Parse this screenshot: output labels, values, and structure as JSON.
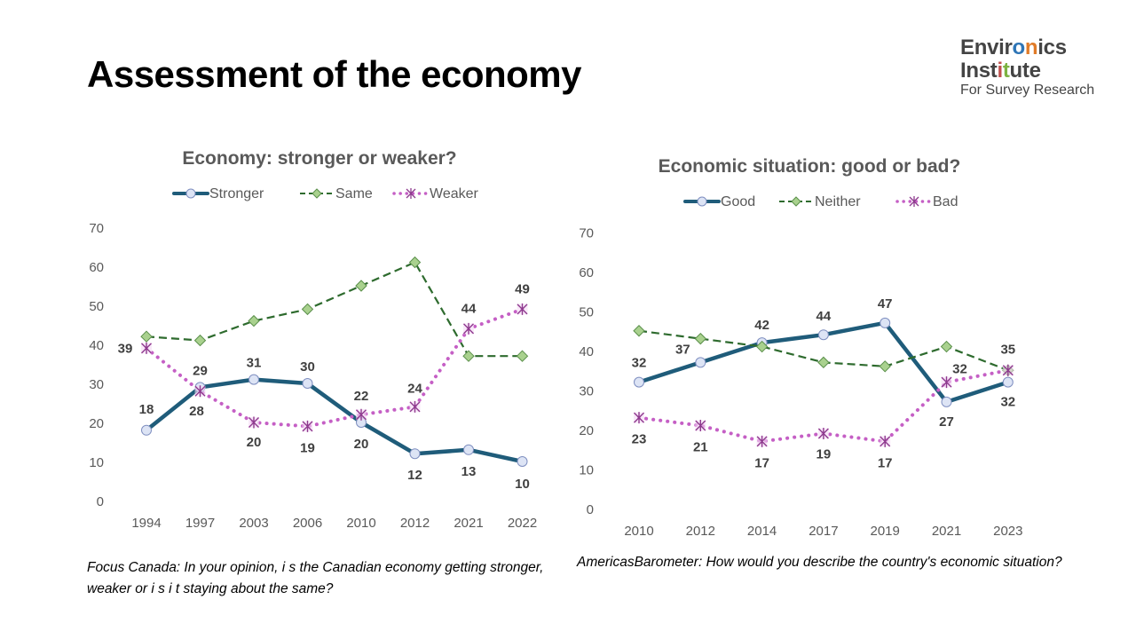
{
  "page": {
    "title": "Assessment of the economy",
    "logo": {
      "line1_a": "Envir",
      "line1_o": "o",
      "line1_n": "n",
      "line1_b": "ics",
      "line2_a": "Inst",
      "line2_i": "i",
      "line2_t": "t",
      "line2_b": "ute",
      "line3": "For Survey Research"
    },
    "caption_left": "Focus Canada: In your opinion,  i s the Canadian economy getting stronger, weaker or i s i t staying about the same?",
    "caption_right": "AmericasBarometer: How would you describe the country's economic situation?"
  },
  "colors": {
    "blue": "#1f5c7a",
    "green": "#2e6b2e",
    "green_fill": "#a9d18e",
    "pink": "#c55fc5",
    "marker_fill": "#dde4f5"
  },
  "chart_data": [
    {
      "type": "line",
      "title": "Economy: stronger or weaker?",
      "categories": [
        "1994",
        "1997",
        "2003",
        "2006",
        "2010",
        "2012",
        "2021",
        "2022"
      ],
      "ylim": [
        0,
        70
      ],
      "yticks": [
        0,
        10,
        20,
        30,
        40,
        50,
        60,
        70
      ],
      "legend": "top",
      "series": [
        {
          "name": "Stronger",
          "values": [
            18,
            29,
            31,
            30,
            20,
            12,
            13,
            10
          ],
          "labels": [
            "18",
            "29",
            "31",
            "30",
            "20",
            "12",
            "13",
            "10"
          ]
        },
        {
          "name": "Same",
          "values": [
            42,
            41,
            46,
            49,
            55,
            61,
            37,
            37
          ]
        },
        {
          "name": "Weaker",
          "values": [
            39,
            28,
            20,
            19,
            22,
            24,
            44,
            49
          ],
          "labels": [
            "39",
            "28",
            "20",
            "19",
            "22",
            "24",
            "44",
            "49"
          ]
        }
      ]
    },
    {
      "type": "line",
      "title": "Economic situation: good or bad?",
      "categories": [
        "2010",
        "2012",
        "2014",
        "2017",
        "2019",
        "2021",
        "2023"
      ],
      "ylim": [
        0,
        70
      ],
      "yticks": [
        0,
        10,
        20,
        30,
        40,
        50,
        60,
        70
      ],
      "legend": "top",
      "series": [
        {
          "name": "Good",
          "values": [
            32,
            37,
            42,
            44,
            47,
            27,
            32
          ],
          "labels": [
            "32",
            "37",
            "42",
            "44",
            "47",
            "27",
            "32"
          ]
        },
        {
          "name": "Neither",
          "values": [
            45,
            43,
            41,
            37,
            36,
            41,
            35
          ]
        },
        {
          "name": "Bad",
          "values": [
            23,
            21,
            17,
            19,
            17,
            32,
            35
          ],
          "labels": [
            "23",
            "21",
            "17",
            "19",
            "17",
            "32",
            "35"
          ]
        }
      ]
    }
  ]
}
